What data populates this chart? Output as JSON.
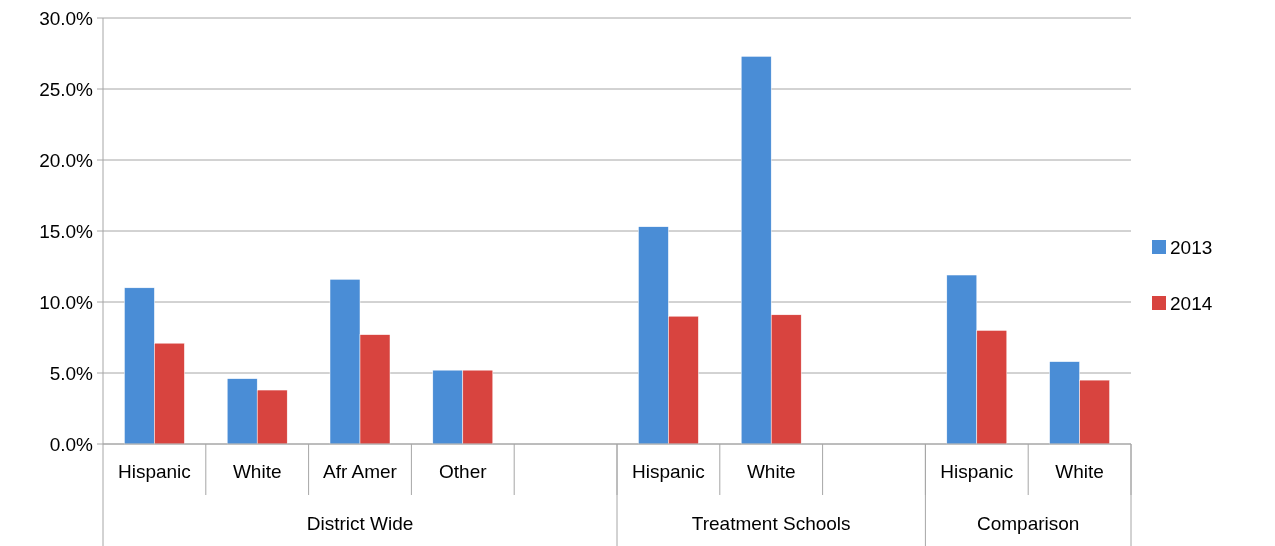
{
  "chart_data": {
    "type": "bar",
    "categories": [
      "Hispanic",
      "White",
      "Afr Amer",
      "Other",
      null,
      "Hispanic",
      "White",
      null,
      "Hispanic",
      "White"
    ],
    "series": [
      {
        "name": "2013",
        "color": "#4a8dd6",
        "values": [
          11.0,
          4.6,
          11.6,
          5.2,
          null,
          15.3,
          27.3,
          null,
          11.9,
          5.8
        ]
      },
      {
        "name": "2014",
        "color": "#d8443f",
        "values": [
          7.1,
          3.8,
          7.7,
          5.2,
          null,
          9.0,
          9.1,
          null,
          8.0,
          4.5
        ]
      }
    ],
    "annotations": [
      "District Wide",
      "Treatment Schools",
      "Comparison"
    ],
    "ylim": [
      0,
      30
    ],
    "yticks": [
      {
        "value": 0,
        "label": "0.0%"
      },
      {
        "value": 5,
        "label": "5.0%"
      },
      {
        "value": 10,
        "label": "10.0%"
      },
      {
        "value": 15,
        "label": "15.0%"
      },
      {
        "value": 20,
        "label": "20.0%"
      },
      {
        "value": 25,
        "label": "25.0%"
      },
      {
        "value": 30,
        "label": "30.0%"
      }
    ],
    "grid": true,
    "legend": "right"
  }
}
